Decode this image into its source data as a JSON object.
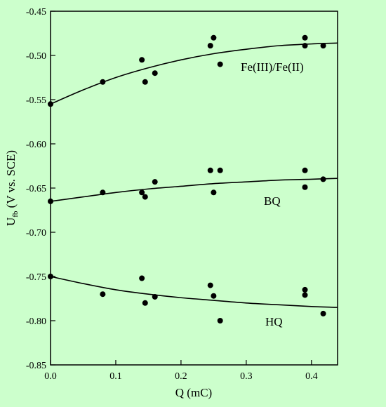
{
  "chart_data": {
    "type": "scatter",
    "title": "",
    "xlabel": "Q (mC)",
    "ylabel": {
      "main": "U",
      "sub": "fb",
      "rest": " (V vs. SCE)"
    },
    "xlim": [
      0.0,
      0.44
    ],
    "ylim": [
      -0.85,
      -0.45
    ],
    "x_ticks": [
      0.0,
      0.1,
      0.2,
      0.3,
      0.4
    ],
    "x_tick_labels": [
      "0.0",
      "0.1",
      "0.2",
      "0.3",
      "0.4"
    ],
    "y_ticks": [
      -0.45,
      -0.5,
      -0.55,
      -0.6,
      -0.65,
      -0.7,
      -0.75,
      -0.8,
      -0.85
    ],
    "y_tick_labels": [
      "-0.45",
      "-0.50",
      "-0.55",
      "-0.60",
      "-0.65",
      "-0.70",
      "-0.75",
      "-0.80",
      "-0.85"
    ],
    "grid": false,
    "legend": "none",
    "series": [
      {
        "name": "Fe(III)/Fe(II)",
        "points": [
          [
            0.0,
            -0.555
          ],
          [
            0.08,
            -0.53
          ],
          [
            0.14,
            -0.505
          ],
          [
            0.145,
            -0.53
          ],
          [
            0.16,
            -0.52
          ],
          [
            0.245,
            -0.489
          ],
          [
            0.25,
            -0.48
          ],
          [
            0.26,
            -0.51
          ],
          [
            0.39,
            -0.48
          ],
          [
            0.39,
            -0.489
          ],
          [
            0.418,
            -0.489
          ]
        ],
        "curve": [
          [
            0.0,
            -0.555
          ],
          [
            0.05,
            -0.539
          ],
          [
            0.1,
            -0.525
          ],
          [
            0.15,
            -0.514
          ],
          [
            0.2,
            -0.505
          ],
          [
            0.25,
            -0.498
          ],
          [
            0.3,
            -0.493
          ],
          [
            0.35,
            -0.489
          ],
          [
            0.4,
            -0.487
          ],
          [
            0.44,
            -0.486
          ]
        ]
      },
      {
        "name": "BQ",
        "points": [
          [
            0.0,
            -0.665
          ],
          [
            0.08,
            -0.655
          ],
          [
            0.14,
            -0.655
          ],
          [
            0.145,
            -0.66
          ],
          [
            0.16,
            -0.643
          ],
          [
            0.245,
            -0.63
          ],
          [
            0.25,
            -0.655
          ],
          [
            0.26,
            -0.63
          ],
          [
            0.39,
            -0.63
          ],
          [
            0.39,
            -0.649
          ],
          [
            0.418,
            -0.64
          ]
        ],
        "curve": [
          [
            0.0,
            -0.665
          ],
          [
            0.05,
            -0.66
          ],
          [
            0.1,
            -0.655
          ],
          [
            0.15,
            -0.651
          ],
          [
            0.2,
            -0.648
          ],
          [
            0.25,
            -0.645
          ],
          [
            0.3,
            -0.643
          ],
          [
            0.35,
            -0.641
          ],
          [
            0.4,
            -0.64
          ],
          [
            0.44,
            -0.639
          ]
        ]
      },
      {
        "name": "HQ",
        "points": [
          [
            0.0,
            -0.75
          ],
          [
            0.08,
            -0.77
          ],
          [
            0.14,
            -0.752
          ],
          [
            0.145,
            -0.78
          ],
          [
            0.16,
            -0.773
          ],
          [
            0.245,
            -0.76
          ],
          [
            0.25,
            -0.772
          ],
          [
            0.26,
            -0.8
          ],
          [
            0.39,
            -0.765
          ],
          [
            0.39,
            -0.771
          ],
          [
            0.418,
            -0.792
          ]
        ],
        "curve": [
          [
            0.0,
            -0.75
          ],
          [
            0.05,
            -0.758
          ],
          [
            0.1,
            -0.765
          ],
          [
            0.15,
            -0.77
          ],
          [
            0.2,
            -0.774
          ],
          [
            0.25,
            -0.777
          ],
          [
            0.3,
            -0.78
          ],
          [
            0.35,
            -0.782
          ],
          [
            0.4,
            -0.784
          ],
          [
            0.44,
            -0.785
          ]
        ]
      }
    ],
    "colors": {
      "background": "#ccffcc",
      "ink": "#000000"
    }
  }
}
